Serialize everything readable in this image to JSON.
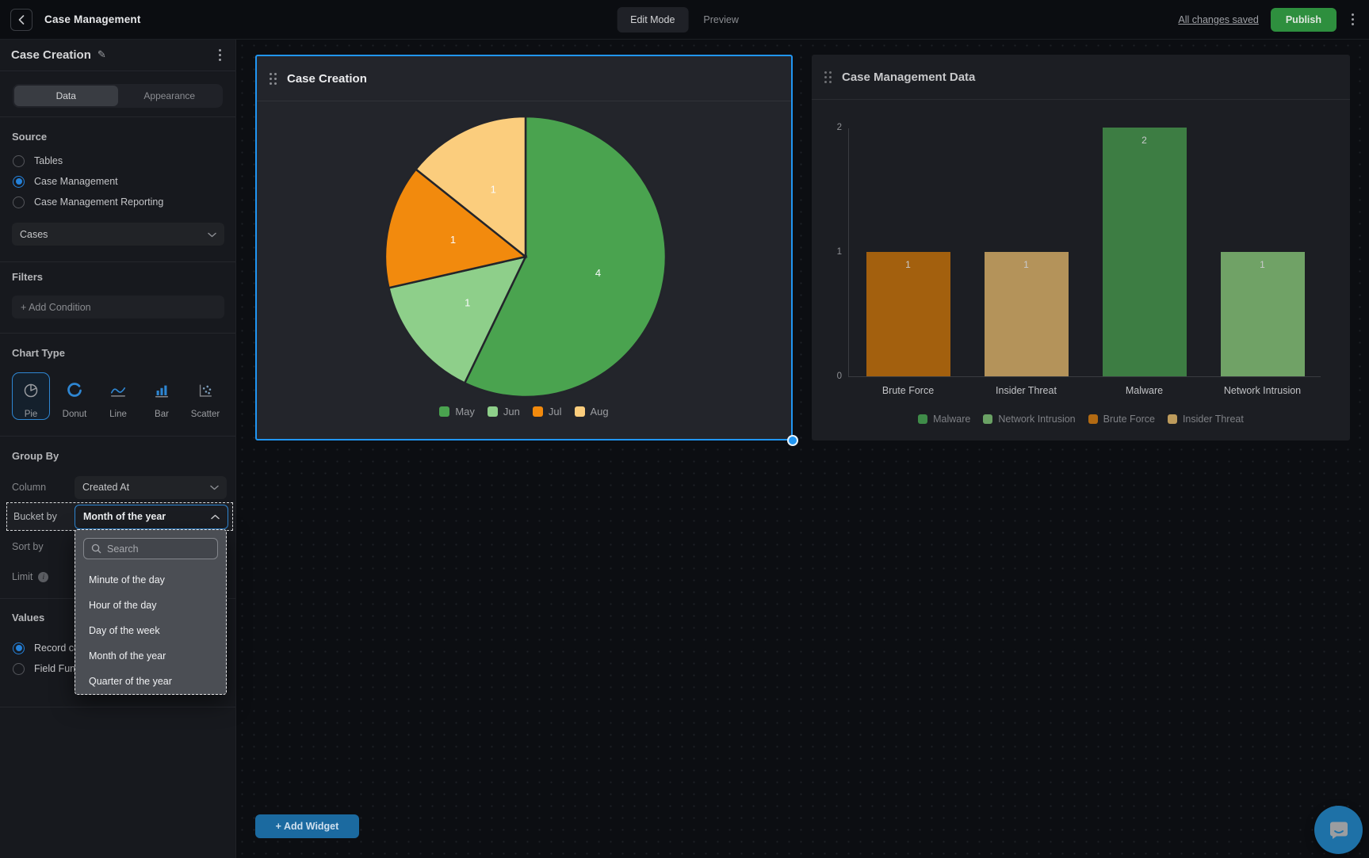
{
  "topbar": {
    "title": "Case Management",
    "mode_tabs": [
      {
        "label": "Edit Mode",
        "active": true
      },
      {
        "label": "Preview",
        "active": false
      }
    ],
    "saved_status": "All changes saved",
    "publish_label": "Publish"
  },
  "panel": {
    "title": "Case Creation",
    "tabs": [
      {
        "label": "Data",
        "active": true
      },
      {
        "label": "Appearance",
        "active": false
      }
    ],
    "source": {
      "heading": "Source",
      "options": [
        {
          "label": "Tables",
          "selected": false
        },
        {
          "label": "Case Management",
          "selected": true
        },
        {
          "label": "Case Management Reporting",
          "selected": false
        }
      ],
      "table_select_value": "Cases"
    },
    "filters": {
      "heading": "Filters",
      "add_condition_label": "+ Add Condition"
    },
    "chart_type": {
      "heading": "Chart Type",
      "options": [
        {
          "label": "Pie",
          "icon": "pie-chart-icon",
          "selected": true
        },
        {
          "label": "Donut",
          "icon": "donut-chart-icon",
          "selected": false
        },
        {
          "label": "Line",
          "icon": "line-chart-icon",
          "selected": false
        },
        {
          "label": "Bar",
          "icon": "bar-chart-icon",
          "selected": false
        },
        {
          "label": "Scatter",
          "icon": "scatter-chart-icon",
          "selected": false
        }
      ]
    },
    "group_by": {
      "heading": "Group By",
      "column_label": "Column",
      "column_value": "Created At",
      "bucket_label": "Bucket by",
      "bucket_value": "Month of the year",
      "sort_label": "Sort by",
      "limit_label": "Limit"
    },
    "bucket_dropdown": {
      "search_placeholder": "Search",
      "options": [
        "Minute of the day",
        "Hour of the day",
        "Day of the week",
        "Month of the year",
        "Quarter of the year"
      ]
    },
    "values": {
      "heading": "Values",
      "options": [
        {
          "label": "Record count",
          "selected": true
        },
        {
          "label": "Field Function",
          "selected": false
        }
      ]
    }
  },
  "widgets": {
    "pie": {
      "title": "Case Creation"
    },
    "bar": {
      "title": "Case Management Data"
    }
  },
  "chart_data": [
    {
      "type": "pie",
      "title": "Case Creation",
      "labels": [
        "May",
        "Jun",
        "Jul",
        "Aug"
      ],
      "values": [
        4,
        1,
        1,
        1
      ],
      "colors": [
        "#4aa34f",
        "#8ecf8a",
        "#f28a0d",
        "#fbcd7d"
      ],
      "value_labels": [
        "4",
        "1",
        "1",
        "1"
      ],
      "legend_position": "bottom",
      "start_angle_deg": 0,
      "direction": "clockwise"
    },
    {
      "type": "bar",
      "title": "Case Management Data",
      "categories": [
        "Brute Force",
        "Insider Threat",
        "Malware",
        "Network Intrusion"
      ],
      "values": [
        1,
        1,
        2,
        1
      ],
      "bar_colors": [
        "#a3600e",
        "#b4935a",
        "#3d7d43",
        "#70a266"
      ],
      "ylim": [
        0,
        2
      ],
      "yticks": [
        0,
        1,
        2
      ],
      "grid": false,
      "legend_position": "bottom",
      "legend": [
        {
          "label": "Malware",
          "color": "#3f8c49"
        },
        {
          "label": "Network Intrusion",
          "color": "#6aa164"
        },
        {
          "label": "Brute Force",
          "color": "#b26a12"
        },
        {
          "label": "Insider Threat",
          "color": "#bd9b5c"
        }
      ]
    }
  ],
  "canvas": {
    "add_widget_label": "+ Add Widget"
  },
  "colors": {
    "selection_accent": "#2196f3",
    "radio_accent": "#2581d9",
    "publish_green": "#2e8f3e",
    "add_widget_blue": "#1b6aa0",
    "chat_blue": "#1e71a7",
    "dropdown_panel": "#4b4e54"
  }
}
